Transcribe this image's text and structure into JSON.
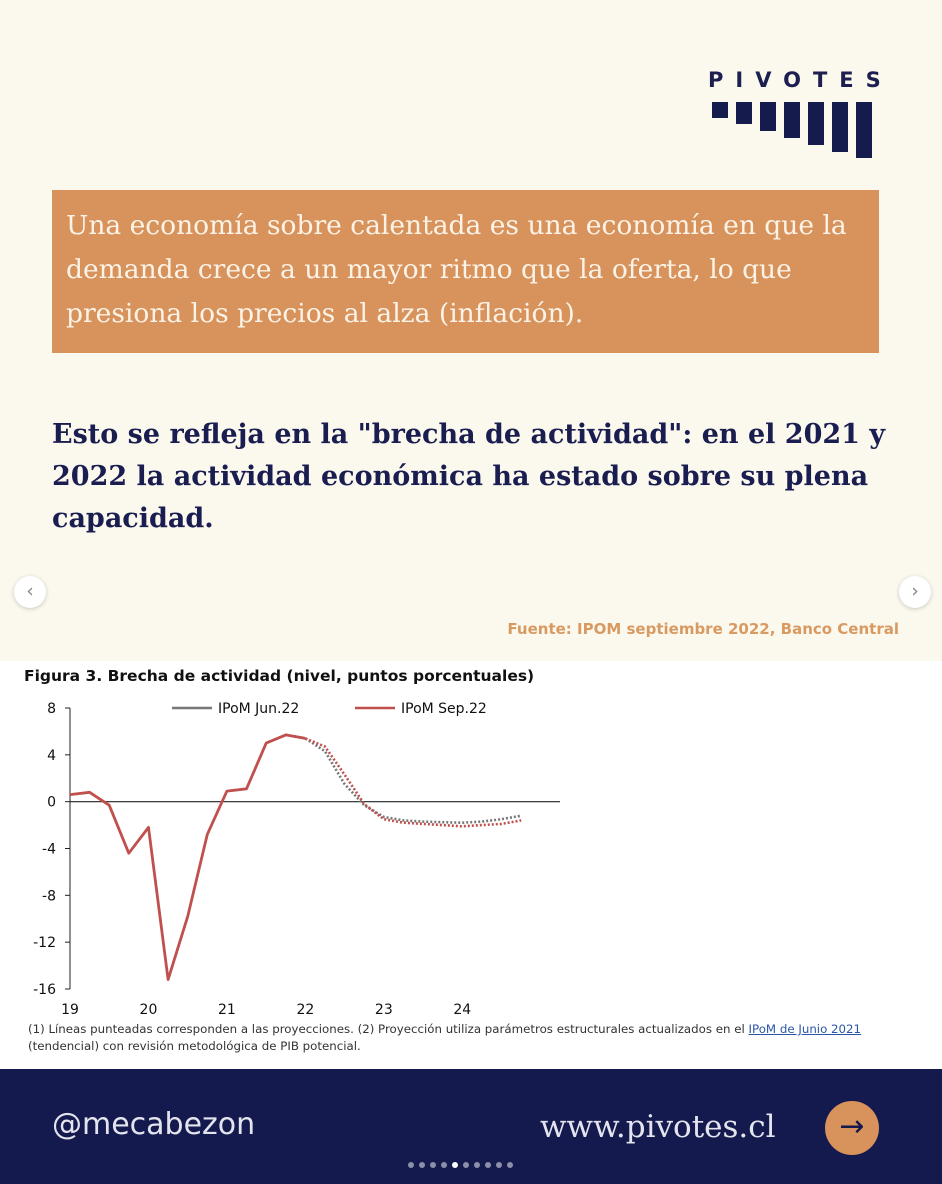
{
  "brand": {
    "logo_text": "PIVOTES"
  },
  "quote_text": "Una economía sobre calentada es una economía en que la demanda crece a un mayor ritmo que la oferta, lo que presiona los precios al alza (inflación).",
  "headline_text": "Esto se refleja en la \"brecha de actividad\": en el 2021 y 2022 la actividad económica ha estado sobre su plena capacidad.",
  "source_text": "Fuente: IPOM septiembre 2022, Banco Central",
  "nav": {
    "prev_icon": "chevron-left-icon",
    "next_icon": "chevron-right-icon",
    "prev_glyph": "‹",
    "next_glyph": "›"
  },
  "figure": {
    "title": "Figura 3. Brecha de actividad (nivel, puntos porcentuales)",
    "footnote_part1": "(1) Líneas punteadas corresponden a las proyecciones. (2) Proyección utiliza parámetros estructurales actualizados en el ",
    "footnote_link": "IPoM de Junio 2021",
    "footnote_part2": " (tendencial) con revisión metodológica de PIB potencial."
  },
  "chart_data": {
    "type": "line",
    "title": "Figura 3. Brecha de actividad (nivel, puntos porcentuales)",
    "x_tick_labels": [
      "19",
      "20",
      "21",
      "22",
      "23",
      "24"
    ],
    "yticks": [
      8,
      4,
      0,
      -4,
      -8,
      -12,
      -16
    ],
    "ylim": [
      -16,
      8
    ],
    "xlim": [
      2019.0,
      2025.5
    ],
    "legend_position": "top",
    "series": [
      {
        "name": "IPoM Jun.22",
        "color": "#777777",
        "historical": [],
        "projection": [
          [
            2021.75,
            5.7
          ],
          [
            2022.0,
            5.4
          ],
          [
            2022.25,
            4.3
          ],
          [
            2022.5,
            1.5
          ],
          [
            2022.75,
            -0.3
          ],
          [
            2023.0,
            -1.3
          ],
          [
            2023.25,
            -1.6
          ],
          [
            2023.5,
            -1.7
          ],
          [
            2023.75,
            -1.75
          ],
          [
            2024.0,
            -1.8
          ],
          [
            2024.25,
            -1.7
          ],
          [
            2024.5,
            -1.5
          ],
          [
            2024.75,
            -1.2
          ]
        ]
      },
      {
        "name": "IPoM Sep.22",
        "color": "#c0504d",
        "historical": [
          [
            2019.0,
            0.6
          ],
          [
            2019.25,
            0.8
          ],
          [
            2019.5,
            -0.3
          ],
          [
            2019.75,
            -4.4
          ],
          [
            2020.0,
            -2.2
          ],
          [
            2020.25,
            -15.2
          ],
          [
            2020.5,
            -9.8
          ],
          [
            2020.75,
            -2.8
          ],
          [
            2021.0,
            0.9
          ],
          [
            2021.25,
            1.1
          ],
          [
            2021.5,
            5.0
          ],
          [
            2021.75,
            5.7
          ],
          [
            2022.0,
            5.4
          ]
        ],
        "projection": [
          [
            2022.0,
            5.4
          ],
          [
            2022.25,
            4.7
          ],
          [
            2022.5,
            2.3
          ],
          [
            2022.75,
            -0.2
          ],
          [
            2023.0,
            -1.5
          ],
          [
            2023.25,
            -1.8
          ],
          [
            2023.5,
            -1.9
          ],
          [
            2023.75,
            -2.0
          ],
          [
            2024.0,
            -2.1
          ],
          [
            2024.25,
            -2.0
          ],
          [
            2024.5,
            -1.9
          ],
          [
            2024.75,
            -1.6
          ]
        ]
      }
    ]
  },
  "footer": {
    "handle": "@mecabezon",
    "website": "www.pivotes.cl",
    "next_icon": "arrow-right-icon",
    "next_glyph": "→",
    "dot_count": 10,
    "active_dot": 4
  }
}
